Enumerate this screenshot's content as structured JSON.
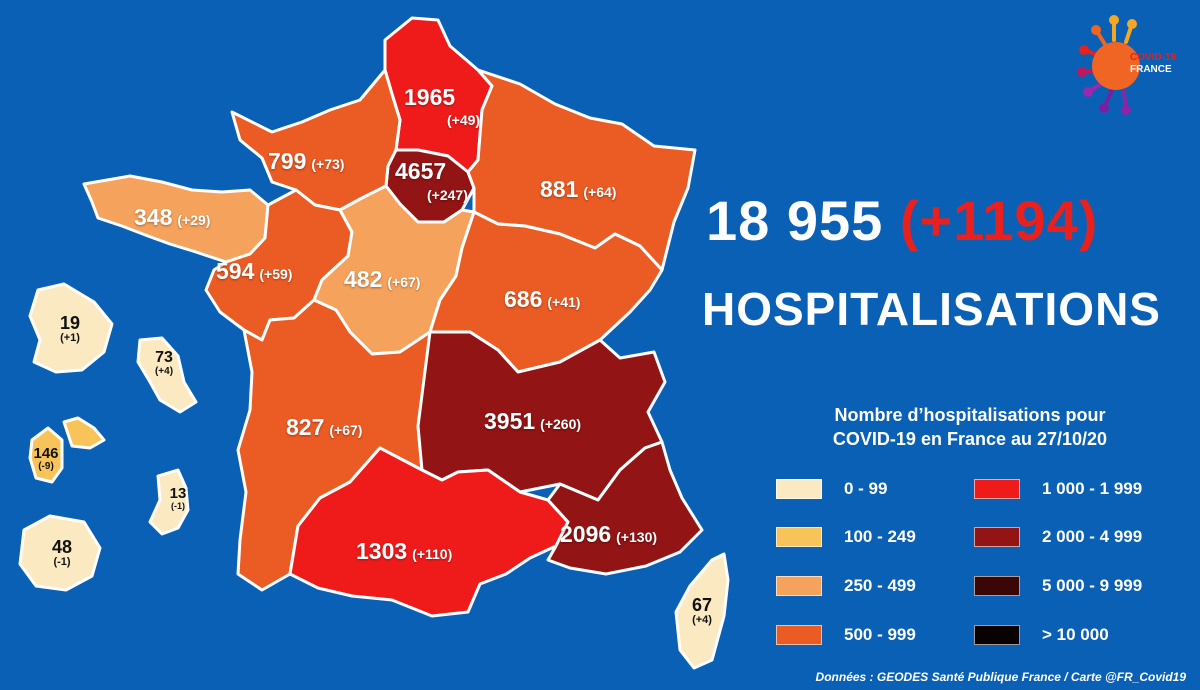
{
  "headline": {
    "total": "18 955",
    "delta": "(+1194)",
    "subtitle": "HOSPITALISATIONS"
  },
  "legend": {
    "title_line1": "Nombre d’hospitalisations pour",
    "title_line2": "COVID-19 en France au 27/10/20",
    "items": [
      {
        "label": "0 - 99",
        "color": "#fbe9c1"
      },
      {
        "label": "100 - 249",
        "color": "#f8c45a"
      },
      {
        "label": "250 - 499",
        "color": "#f5a25c"
      },
      {
        "label": "500 - 999",
        "color": "#eb5b24"
      },
      {
        "label": "1 000 - 1 999",
        "color": "#ef1b1b"
      },
      {
        "label": "2 000 - 4 999",
        "color": "#931414"
      },
      {
        "label": "5 000 - 9 999",
        "color": "#3a0606"
      },
      {
        "label": "> 10 000",
        "color": "#0a0202"
      }
    ]
  },
  "regions": [
    {
      "id": "hauts-de-france",
      "value": "1965",
      "delta": "(+49)",
      "color": "#ef1b1b"
    },
    {
      "id": "ile-de-france",
      "value": "4657",
      "delta": "(+247)",
      "color": "#931414"
    },
    {
      "id": "normandie",
      "value": "799",
      "delta": "(+73)",
      "color": "#eb5b24"
    },
    {
      "id": "grand-est",
      "value": "881",
      "delta": "(+64)",
      "color": "#eb5b24"
    },
    {
      "id": "bretagne",
      "value": "348",
      "delta": "(+29)",
      "color": "#f5a25c"
    },
    {
      "id": "pays-de-la-loire",
      "value": "594",
      "delta": "(+59)",
      "color": "#eb5b24"
    },
    {
      "id": "centre-val-de-loire",
      "value": "482",
      "delta": "(+67)",
      "color": "#f5a25c"
    },
    {
      "id": "bourgogne-franche-comte",
      "value": "686",
      "delta": "(+41)",
      "color": "#eb5b24"
    },
    {
      "id": "nouvelle-aquitaine",
      "value": "827",
      "delta": "(+67)",
      "color": "#eb5b24"
    },
    {
      "id": "auvergne-rhone-alpes",
      "value": "3951",
      "delta": "(+260)",
      "color": "#931414"
    },
    {
      "id": "occitanie",
      "value": "1303",
      "delta": "(+110)",
      "color": "#ef1b1b"
    },
    {
      "id": "provence-alpes-cote-azur",
      "value": "2096",
      "delta": "(+130)",
      "color": "#931414"
    },
    {
      "id": "corse",
      "value": "67",
      "delta": "(+4)",
      "color": "#fbe9c1"
    }
  ],
  "overseas": [
    {
      "id": "guyane",
      "value": "19",
      "delta": "(+1)",
      "color": "#fbe9c1"
    },
    {
      "id": "martinique",
      "value": "73",
      "delta": "(+4)",
      "color": "#fbe9c1"
    },
    {
      "id": "guadeloupe",
      "value": "146",
      "delta": "(-9)",
      "color": "#f8c45a"
    },
    {
      "id": "mayotte",
      "value": "13",
      "delta": "(-1)",
      "color": "#fbe9c1"
    },
    {
      "id": "reunion",
      "value": "48",
      "delta": "(-1)",
      "color": "#fbe9c1"
    }
  ],
  "logo": {
    "line1": "COVID-19",
    "line2": "FRANCE"
  },
  "footer": "Données : GEODES Santé Publique France / Carte @FR_Covid19"
}
